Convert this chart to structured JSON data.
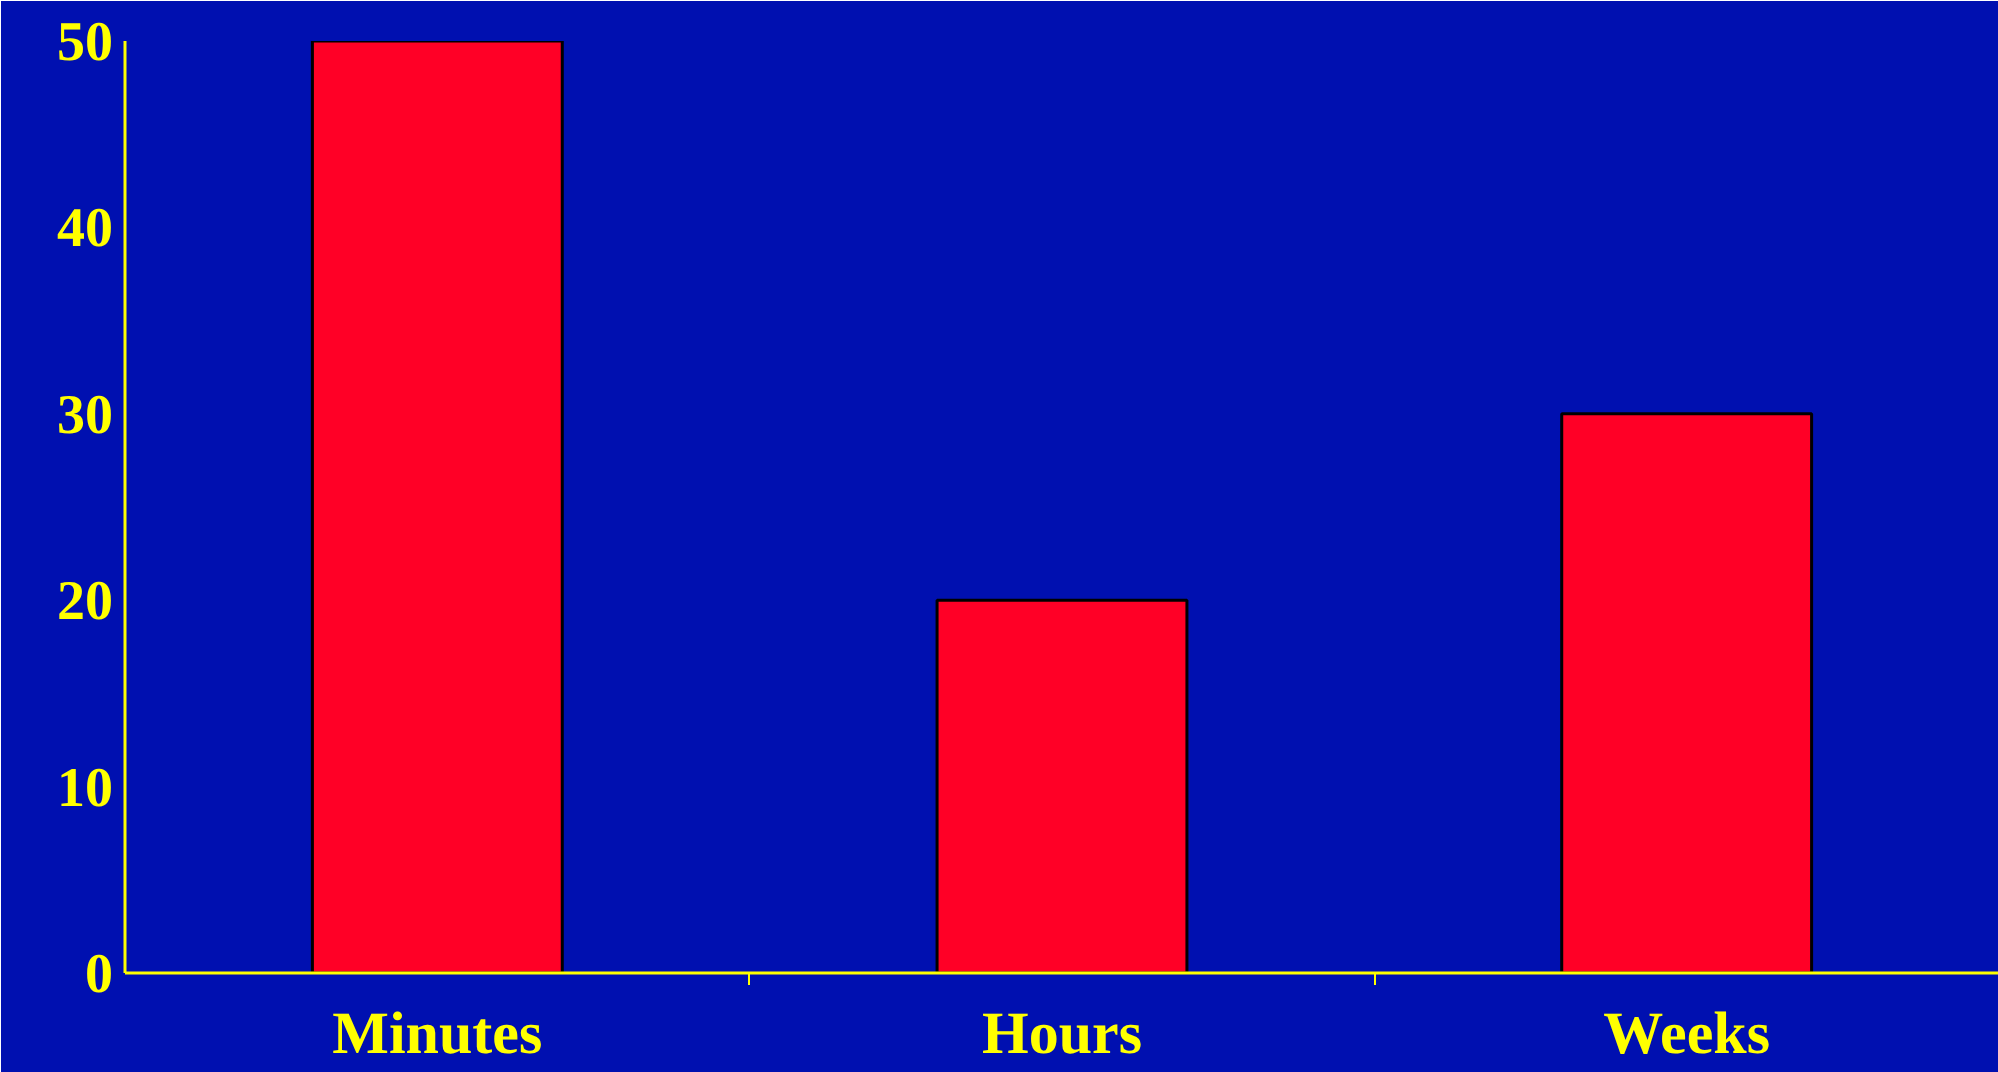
{
  "chart_data": {
    "type": "bar",
    "categories": [
      "Minutes",
      "Hours",
      "Weeks"
    ],
    "values": [
      50,
      20,
      30
    ],
    "color": "#ff0026",
    "ylim": [
      0,
      50
    ],
    "yticks": [
      0,
      10,
      20,
      30,
      40,
      50
    ],
    "grid": false
  }
}
